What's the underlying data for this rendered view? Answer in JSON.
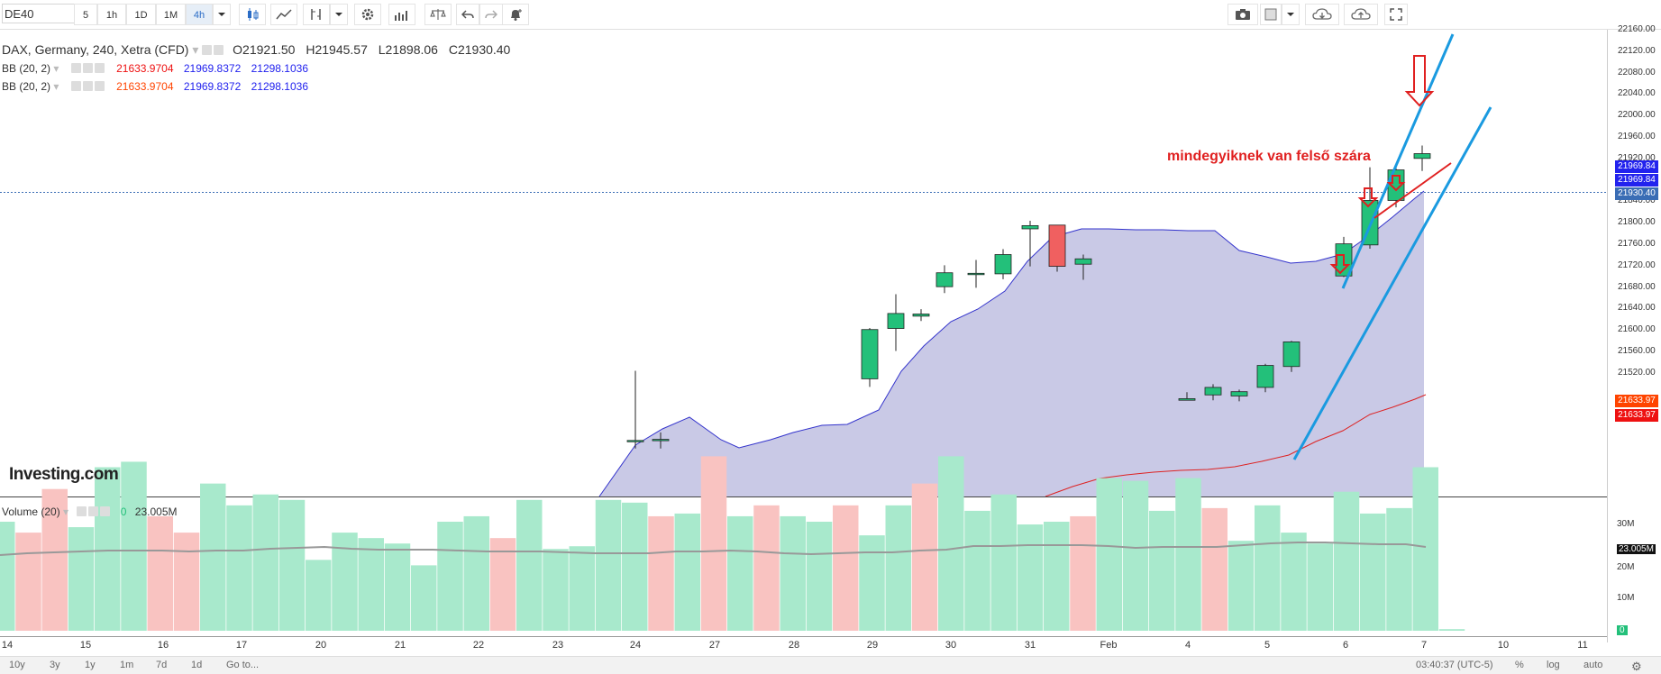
{
  "toolbar": {
    "symbol": "DE40",
    "timeframes": [
      "5",
      "1h",
      "1D",
      "1M",
      "4h"
    ],
    "active_timeframe": "4h",
    "icons": [
      "candlestick-icon",
      "line-chart-icon",
      "bar-tools-icon",
      "dropdown-icon",
      "settings-icon",
      "indicators-icon",
      "compare-icon",
      "undo-icon",
      "redo-icon",
      "alert-bell-icon"
    ],
    "right_icons": [
      "camera-icon",
      "layout-icon",
      "cloud-download-icon",
      "cloud-upload-icon",
      "fullscreen-icon"
    ]
  },
  "legend": {
    "title": "DAX, Germany, 240, Xetra (CFD)",
    "open": "O21921.50",
    "high": "H21945.57",
    "low": "L21898.06",
    "close": "C21930.40",
    "bb1": {
      "label": "BB (20, 2)",
      "v1": "21633.9704",
      "v2": "21969.8372",
      "v3": "21298.1036"
    },
    "bb2": {
      "label": "BB (20, 2)",
      "v1": "21633.9704",
      "v2": "21969.8372",
      "v3": "21298.1036"
    }
  },
  "annotation_text": "mindegyiknek van felső szára",
  "logo": "Investing.com",
  "price_axis": {
    "ticks": [
      "22160.00",
      "22120.00",
      "22080.00",
      "22040.00",
      "22000.00",
      "21960.00",
      "21920.00",
      "21880.00",
      "21840.00",
      "21800.00",
      "21760.00",
      "21720.00",
      "21680.00",
      "21640.00",
      "21600.00",
      "21560.00",
      "21520.00"
    ],
    "badges": [
      {
        "text": "21969.84",
        "color": "#2222ee"
      },
      {
        "text": "21969.84",
        "color": "#2222ee"
      },
      {
        "text": "21930.40",
        "color": "#3a6db5"
      },
      {
        "text": "21633.97",
        "color": "#ff4400"
      },
      {
        "text": "21633.97",
        "color": "#ee1111"
      }
    ]
  },
  "volume": {
    "label": "Volume (20)",
    "value_zero": "0",
    "value": "23.005M",
    "ticks": [
      "30M",
      "23.005M",
      "20M",
      "10M",
      "0"
    ]
  },
  "time_axis": {
    "labels": [
      "14",
      "15",
      "16",
      "17",
      "20",
      "21",
      "22",
      "23",
      "24",
      "27",
      "28",
      "29",
      "30",
      "31",
      "Feb",
      "4",
      "5",
      "6",
      "7",
      "10",
      "11"
    ]
  },
  "bottom": {
    "ranges": [
      "10y",
      "3y",
      "1y",
      "1m",
      "7d",
      "1d"
    ],
    "goto": "Go to...",
    "time": "03:40:37 (UTC-5)",
    "pct": "%",
    "log": "log",
    "auto": "auto"
  },
  "colors": {
    "up": "#23c07a",
    "down": "#f06060",
    "band_fill": "#c9c9e6",
    "band_line": "#3333cc",
    "mid_line": "#dd2222",
    "trend": "#1a9ae0",
    "arrow": "#e02020"
  },
  "chart_data": {
    "type": "candlestick",
    "title": "DAX, Germany, 240, Xetra (CFD)",
    "candles": [
      {
        "o": 21395,
        "h": 21525,
        "l": 21380,
        "c": 21395
      },
      {
        "o": 21395,
        "h": 21410,
        "l": 21380,
        "c": 21397
      },
      {
        "o": 21510,
        "h": 21605,
        "l": 21495,
        "c": 21602
      },
      {
        "o": 21604,
        "h": 21668,
        "l": 21562,
        "c": 21632
      },
      {
        "o": 21627,
        "h": 21640,
        "l": 21618,
        "c": 21631
      },
      {
        "o": 21682,
        "h": 21722,
        "l": 21670,
        "c": 21708
      },
      {
        "o": 21706,
        "h": 21732,
        "l": 21680,
        "c": 21707
      },
      {
        "o": 21706,
        "h": 21752,
        "l": 21696,
        "c": 21742
      },
      {
        "o": 21790,
        "h": 21805,
        "l": 21720,
        "c": 21796
      },
      {
        "o": 21797,
        "h": 21797,
        "l": 21710,
        "c": 21720
      },
      {
        "o": 21724,
        "h": 21742,
        "l": 21695,
        "c": 21734
      },
      {
        "o": 21470,
        "h": 21485,
        "l": 21470,
        "c": 21473
      },
      {
        "o": 21480,
        "h": 21500,
        "l": 21470,
        "c": 21494
      },
      {
        "o": 21478,
        "h": 21490,
        "l": 21468,
        "c": 21486
      },
      {
        "o": 21494,
        "h": 21538,
        "l": 21485,
        "c": 21535
      },
      {
        "o": 21533,
        "h": 21581,
        "l": 21523,
        "c": 21579
      },
      {
        "o": 21702,
        "h": 21775,
        "l": 21700,
        "c": 21762
      },
      {
        "o": 21760,
        "h": 21905,
        "l": 21753,
        "c": 21843
      },
      {
        "o": 21843,
        "h": 21910,
        "l": 21830,
        "c": 21900
      },
      {
        "o": 21921.5,
        "h": 21945.57,
        "l": 21898.06,
        "c": 21930.4
      }
    ]
  }
}
